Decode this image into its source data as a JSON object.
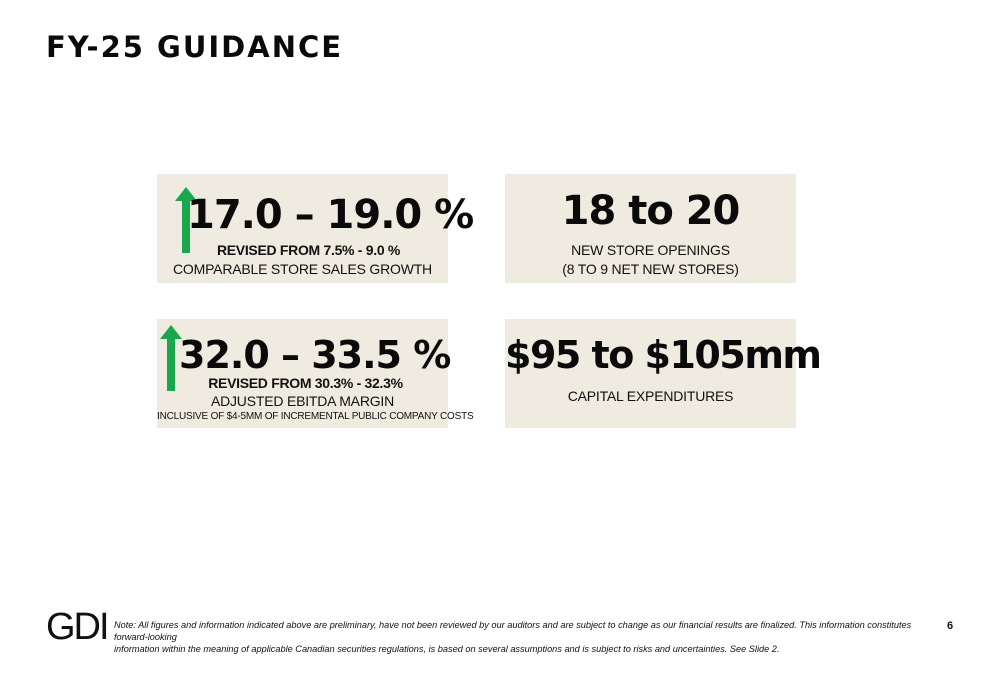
{
  "title": "FY-25 GUIDANCE",
  "cards": [
    {
      "value": "17.0 – 19.0 %",
      "revised": "REVISED FROM 7.5% - 9.0 %",
      "label": "COMPARABLE STORE SALES GROWTH",
      "arrow_icon": "up-arrow-icon"
    },
    {
      "value": "18 to 20",
      "label_line1": "NEW STORE OPENINGS",
      "label_line2": "(8 TO 9 NET NEW STORES)"
    },
    {
      "value": "32.0 – 33.5 %",
      "revised": "REVISED FROM 30.3% - 32.3%",
      "label": "ADJUSTED EBITDA MARGIN",
      "footnote": "INCLUSIVE OF $4-5MM OF INCREMENTAL PUBLIC COMPANY COSTS",
      "arrow_icon": "up-arrow-icon"
    },
    {
      "value": "$95 to $105mm",
      "label": "CAPITAL EXPENDITURES"
    }
  ],
  "colors": {
    "card_background": "#efebe0",
    "arrow": "#1aa64a"
  },
  "footer": {
    "logo": "GDI",
    "note_line1": "Note: All figures and information indicated above are preliminary, have not been reviewed by our auditors and are subject to change as our financial results are finalized. This information constitutes forward-looking",
    "note_line2": "information within the meaning of applicable Canadian securities regulations, is based on several assumptions and is subject to risks and uncertainties. See Slide 2.",
    "page_number": "6"
  }
}
